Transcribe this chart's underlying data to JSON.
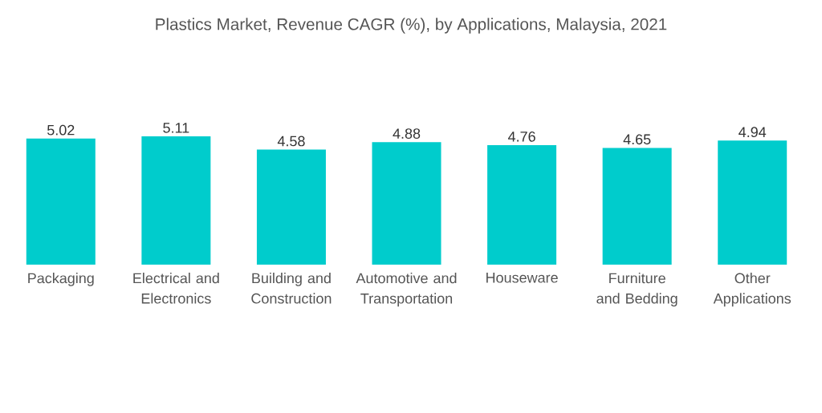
{
  "chart_data": {
    "type": "bar",
    "title": "Plastics Market, Revenue CAGR (%), by Applications, Malaysia, 2021",
    "categories": [
      "Packaging",
      "Electrical and Electronics",
      "Building and Construction",
      "Automotive and Transportation",
      "Houseware",
      "Furniture and Bedding",
      "Other Applications"
    ],
    "values": [
      5.02,
      5.11,
      4.58,
      4.88,
      4.76,
      4.65,
      4.94
    ],
    "color": "#00cccc",
    "data_labels": true
  }
}
